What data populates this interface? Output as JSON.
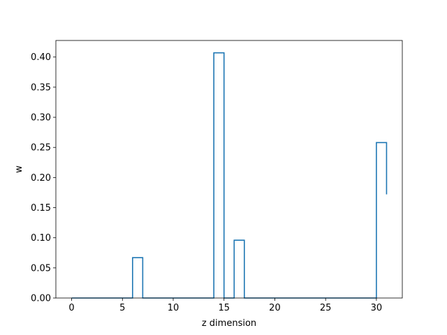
{
  "chart_data": {
    "type": "line",
    "style": "step-post",
    "title": "",
    "xlabel": "z dimension",
    "ylabel": "w",
    "xlim": [
      -1.55,
      32.55
    ],
    "ylim": [
      0,
      0.4275
    ],
    "x_ticks": [
      0,
      5,
      10,
      15,
      20,
      25,
      30
    ],
    "y_ticks": [
      0.0,
      0.05,
      0.1,
      0.15,
      0.2,
      0.25,
      0.3,
      0.35,
      0.4
    ],
    "y_tick_labels": [
      "0.00",
      "0.05",
      "0.10",
      "0.15",
      "0.20",
      "0.25",
      "0.30",
      "0.35",
      "0.40"
    ],
    "grid": false,
    "line_color": "#1f77b4",
    "series": [
      {
        "x": [
          0,
          1,
          2,
          3,
          4,
          5,
          6,
          7,
          8,
          9,
          10,
          11,
          12,
          13,
          14,
          15,
          16,
          17,
          18,
          19,
          20,
          21,
          22,
          23,
          24,
          25,
          26,
          27,
          28,
          29,
          30,
          31
        ],
        "values": [
          0,
          0,
          0,
          0,
          0,
          0,
          0.067,
          0,
          0,
          0,
          0,
          0,
          0,
          0,
          0.407,
          0,
          0.096,
          0,
          0,
          0,
          0,
          0,
          0,
          0,
          0,
          0,
          0,
          0,
          0,
          0,
          0.258,
          0.172
        ]
      }
    ]
  }
}
